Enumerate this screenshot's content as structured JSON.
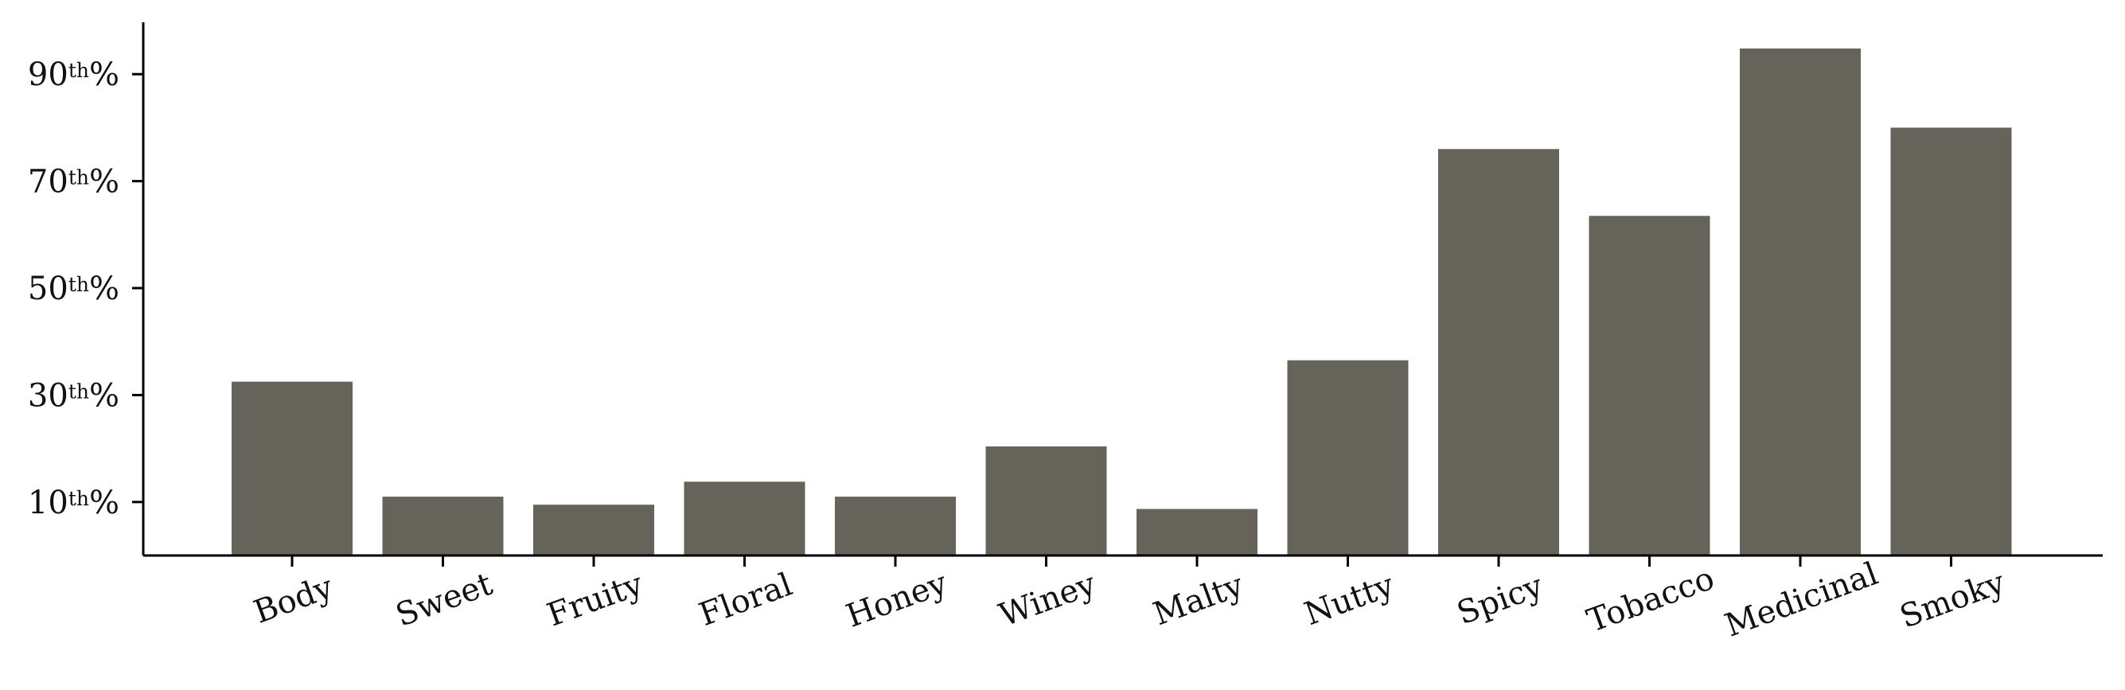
{
  "chart_data": {
    "type": "bar",
    "title": "",
    "xlabel": "",
    "ylabel": "",
    "categories": [
      "Body",
      "Sweet",
      "Fruity",
      "Floral",
      "Honey",
      "Winey",
      "Malty",
      "Nutty",
      "Spicy",
      "Tobacco",
      "Medicinal",
      "Smoky"
    ],
    "values": [
      32.5,
      11.0,
      9.5,
      13.8,
      11.0,
      20.4,
      8.7,
      36.5,
      76.0,
      63.5,
      94.8,
      80.0
    ],
    "ylim": [
      0,
      100
    ],
    "yticks": [
      10,
      30,
      50,
      70,
      90
    ],
    "ytick_labels": [
      {
        "num": "10",
        "sup": "th",
        "unit": "%"
      },
      {
        "num": "30",
        "sup": "th",
        "unit": "%"
      },
      {
        "num": "50",
        "sup": "th",
        "unit": "%"
      },
      {
        "num": "70",
        "sup": "th",
        "unit": "%"
      },
      {
        "num": "90",
        "sup": "th",
        "unit": "%"
      }
    ],
    "bar_color": "#66635a",
    "grid": false,
    "legend": "none"
  }
}
